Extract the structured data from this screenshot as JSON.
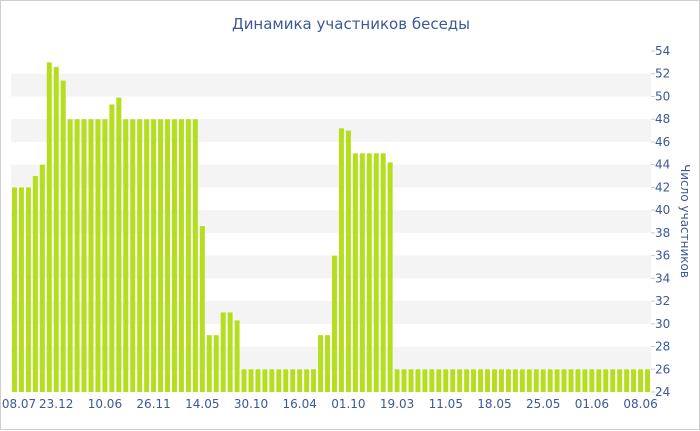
{
  "chart_data": {
    "type": "bar",
    "title": "Динамика участников беседы",
    "ylabel": "Число участников",
    "xlabel": "",
    "ylim": [
      24,
      54
    ],
    "yticks": [
      24,
      26,
      28,
      30,
      32,
      34,
      36,
      38,
      40,
      42,
      44,
      46,
      48,
      50,
      52,
      54
    ],
    "xticks": [
      {
        "label": "08.07",
        "index": 0
      },
      {
        "label": "23.12",
        "index": 6
      },
      {
        "label": "10.06",
        "index": 13
      },
      {
        "label": "26.11",
        "index": 20
      },
      {
        "label": "14.05",
        "index": 27
      },
      {
        "label": "30.10",
        "index": 34
      },
      {
        "label": "16.04",
        "index": 41
      },
      {
        "label": "01.10",
        "index": 48
      },
      {
        "label": "19.03",
        "index": 55
      },
      {
        "label": "11.05",
        "index": 62
      },
      {
        "label": "18.05",
        "index": 69
      },
      {
        "label": "25.05",
        "index": 76
      },
      {
        "label": "01.06",
        "index": 83
      },
      {
        "label": "08.06",
        "index": 90
      }
    ],
    "values": [
      42,
      42,
      42,
      43,
      44,
      53,
      52.6,
      51.4,
      48,
      48,
      48,
      48,
      48,
      48,
      49.3,
      49.9,
      48,
      48,
      48,
      48,
      48,
      48,
      48,
      48,
      48,
      48,
      48,
      38.6,
      29,
      29,
      31,
      31,
      30.3,
      26,
      26,
      26,
      26,
      26,
      26,
      26,
      26,
      26,
      26,
      26,
      29,
      29,
      36,
      47.2,
      47,
      45,
      45,
      45,
      45,
      45,
      44.2,
      26,
      26,
      26,
      26,
      26,
      26,
      26,
      26,
      26,
      26,
      26,
      26,
      26,
      26,
      26,
      26,
      26,
      26,
      26,
      26,
      26,
      26,
      26,
      26,
      26,
      26,
      26,
      26,
      26,
      26,
      26,
      26,
      26,
      26,
      26,
      26,
      26
    ],
    "colors": {
      "bar": "#b5de1e",
      "bar_edge": "#9cc616",
      "band": "#f4f4f4",
      "text": "#3b5998",
      "axis": "#cccccc"
    },
    "grid": true,
    "y_axis_side": "right"
  }
}
